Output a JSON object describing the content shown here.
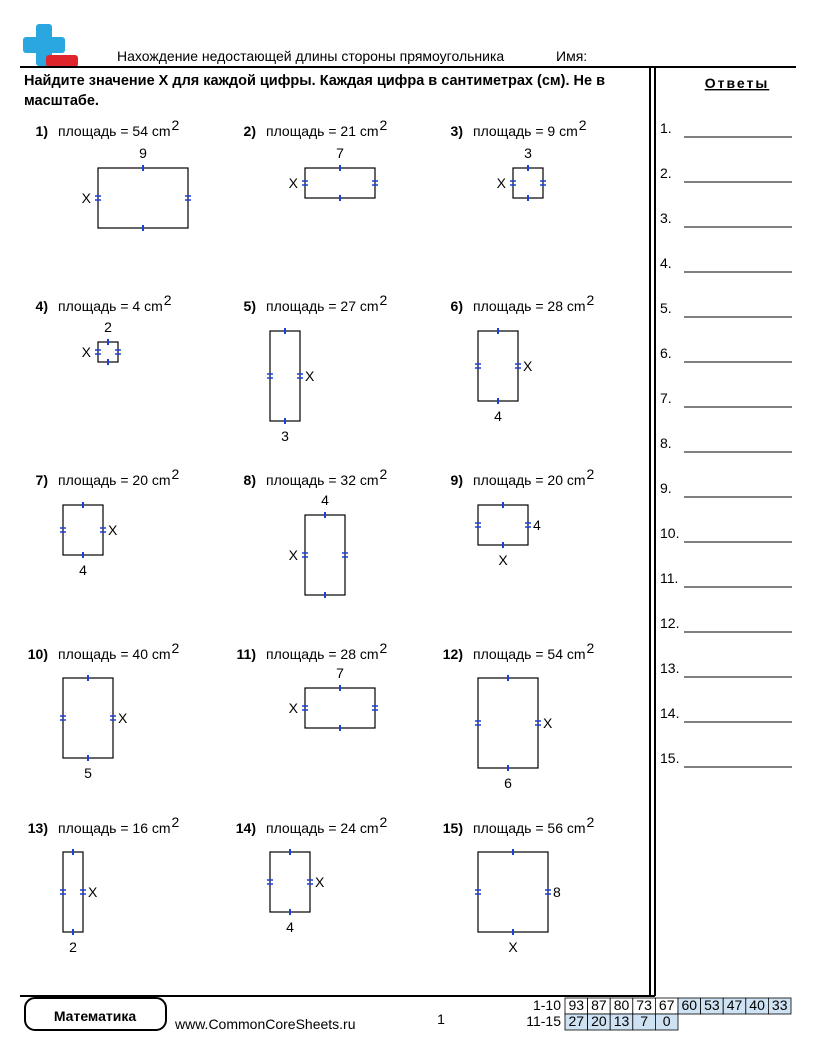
{
  "header": {
    "title": "Нахождение недостающей длины стороны прямоугольника",
    "name_label": "Имя:"
  },
  "instructions": "Найдите значение X для каждой цифры. Каждая цифра в сантиметрах (см). Не в масштабе.",
  "answers": {
    "title": "Ответы",
    "labels": [
      "1.",
      "2.",
      "3.",
      "4.",
      "5.",
      "6.",
      "7.",
      "8.",
      "9.",
      "10.",
      "11.",
      "12.",
      "13.",
      "14.",
      "15."
    ]
  },
  "problems": [
    {
      "number": "1)",
      "area": "площадь = 54 cm",
      "power": "2",
      "top": "9",
      "left": "X"
    },
    {
      "number": "2)",
      "area": "площадь = 21 cm",
      "power": "2",
      "top": "7",
      "left": "X"
    },
    {
      "number": "3)",
      "area": "площадь = 9 cm",
      "power": "2",
      "top": "3",
      "left": "X"
    },
    {
      "number": "4)",
      "area": "площадь = 4 cm",
      "power": "2",
      "top": "2",
      "left": "X"
    },
    {
      "number": "5)",
      "area": "площадь = 27 cm",
      "power": "2",
      "bottom": "3",
      "right": "X"
    },
    {
      "number": "6)",
      "area": "площадь = 28 cm",
      "power": "2",
      "bottom": "4",
      "right": "X"
    },
    {
      "number": "7)",
      "area": "площадь = 20 cm",
      "power": "2",
      "bottom": "4",
      "right": "X"
    },
    {
      "number": "8)",
      "area": "площадь = 32 cm",
      "power": "2",
      "top": "4",
      "left": "X"
    },
    {
      "number": "9)",
      "area": "площадь = 20 cm",
      "power": "2",
      "bottom": "X",
      "right": "4"
    },
    {
      "number": "10)",
      "area": "площадь = 40 cm",
      "power": "2",
      "bottom": "5",
      "right": "X"
    },
    {
      "number": "11)",
      "area": "площадь = 28 cm",
      "power": "2",
      "top": "7",
      "left": "X"
    },
    {
      "number": "12)",
      "area": "площадь = 54 cm",
      "power": "2",
      "bottom": "6",
      "right": "X"
    },
    {
      "number": "13)",
      "area": "площадь = 16 cm",
      "power": "2",
      "bottom": "2",
      "right": "X"
    },
    {
      "number": "14)",
      "area": "площадь = 24 cm",
      "power": "2",
      "bottom": "4",
      "right": "X"
    },
    {
      "number": "15)",
      "area": "площадь = 56 cm",
      "power": "2",
      "bottom": "X",
      "right": "8"
    }
  ],
  "footer": {
    "brand": "Математика",
    "url": "www.CommonCoreSheets.ru",
    "page": "1",
    "score_rows": [
      {
        "label": "1-10",
        "scores": [
          93,
          87,
          80,
          73,
          67,
          60,
          53,
          47,
          40,
          33
        ]
      },
      {
        "label": "11-15",
        "scores": [
          27,
          20,
          13,
          7,
          0
        ]
      }
    ]
  }
}
